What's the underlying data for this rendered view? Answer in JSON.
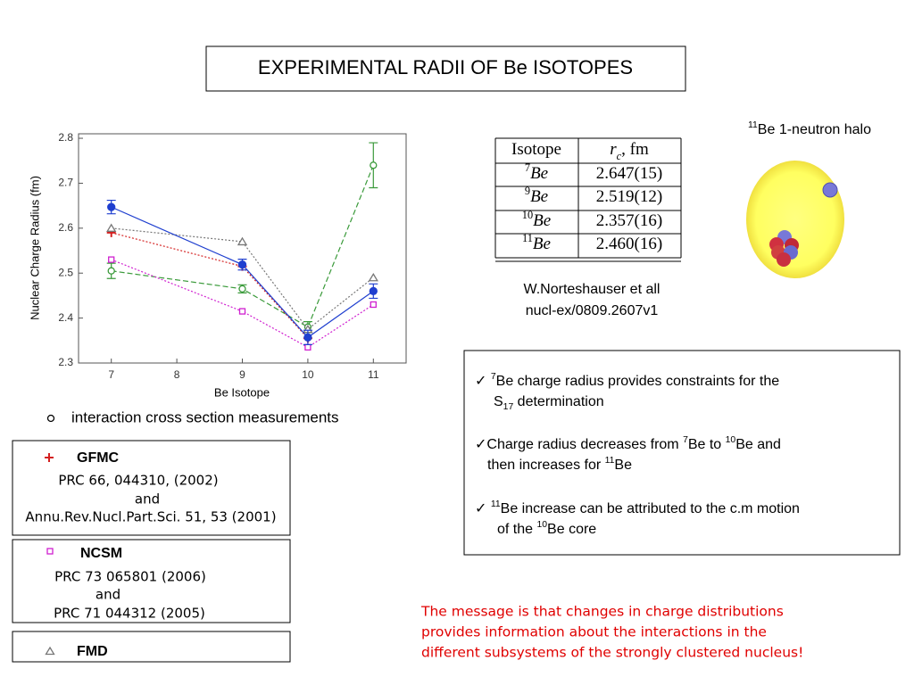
{
  "title": "EXPERIMENTAL RADII OF Be ISOTOPES",
  "chart_data": {
    "type": "line",
    "x_label": "Be Isotope",
    "y_label": "Nuclear Charge Radius (fm)",
    "x": [
      7,
      9,
      10,
      11
    ],
    "xlim": [
      6.5,
      11.5
    ],
    "xticks": [
      7,
      8,
      9,
      10,
      11
    ],
    "ylim": [
      2.3,
      2.81
    ],
    "yticks": [
      2.3,
      2.4,
      2.5,
      2.6,
      2.7,
      2.8
    ],
    "series": [
      {
        "name": "interaction cross section measurements",
        "color": "#3a9a3a",
        "marker": "circle-open",
        "dash": "dashed",
        "values": [
          2.505,
          2.465,
          2.38,
          2.74
        ],
        "errors": [
          0.017,
          0.009,
          0.012,
          0.05
        ]
      },
      {
        "name": "GFMC",
        "color": "#d42020",
        "marker": "plus",
        "dash": "dotted",
        "values": [
          2.59,
          2.515,
          2.355,
          null
        ]
      },
      {
        "name": "NCSM",
        "color": "#d020d0",
        "marker": "square-open",
        "dash": "dotted",
        "values": [
          2.53,
          2.415,
          2.335,
          2.43
        ]
      },
      {
        "name": "FMD",
        "color": "#777777",
        "marker": "triangle-open",
        "dash": "dotted",
        "values": [
          2.6,
          2.57,
          2.375,
          2.49
        ]
      },
      {
        "color": "#1f3fcf",
        "marker": "circle-filled",
        "dash": "solid",
        "values": [
          2.647,
          2.519,
          2.357,
          2.46
        ],
        "errors": [
          0.015,
          0.012,
          0.016,
          0.016
        ]
      }
    ]
  },
  "halo": {
    "label": [
      {
        "text": "11",
        "sup": true
      },
      {
        "text": "Be 1-neutron halo"
      }
    ]
  },
  "table": {
    "header": [
      [
        {
          "text": "Isotope"
        }
      ],
      [
        {
          "text": "r",
          "italic": true
        },
        {
          "text": "c",
          "sub": true,
          "italic": true
        },
        {
          "text": ", fm"
        }
      ]
    ],
    "rows": [
      [
        [
          {
            "text": "7",
            "sup": true
          },
          {
            "text": "Be",
            "italic": true
          }
        ],
        [
          {
            "text": "2.647(15)"
          }
        ]
      ],
      [
        [
          {
            "text": "9",
            "sup": true
          },
          {
            "text": "Be",
            "italic": true
          }
        ],
        [
          {
            "text": "2.519(12)"
          }
        ]
      ],
      [
        [
          {
            "text": "10",
            "sup": true
          },
          {
            "text": "Be",
            "italic": true
          }
        ],
        [
          {
            "text": "2.357(16)"
          }
        ]
      ],
      [
        [
          {
            "text": "11",
            "sup": true
          },
          {
            "text": "Be",
            "italic": true
          }
        ],
        [
          {
            "text": "2.460(16)"
          }
        ]
      ]
    ]
  },
  "citation": [
    "W.Norteshauser et all",
    "nucl-ex/0809.2607v1"
  ],
  "gfmc_refs": [
    "PRC 66, 044310, (2002)",
    "and",
    "Annu.Rev.Nucl.Part.Sci. 51, 53 (2001)"
  ],
  "ncsm_refs": [
    "PRC 73 065801 (2006)",
    "and",
    "PRC 71 044312 (2005)"
  ],
  "notes": [
    [
      [
        {
          "text": "✓ "
        },
        {
          "text": "7",
          "sup": true
        },
        {
          "text": "Be charge radius provides constraints for the"
        }
      ],
      [
        {
          "text": "S"
        },
        {
          "text": "17",
          "sub": true
        },
        {
          "text": " determination"
        }
      ]
    ],
    [
      [
        {
          "text": "✓Charge radius decreases from "
        },
        {
          "text": "7",
          "sup": true
        },
        {
          "text": "Be to "
        },
        {
          "text": "10",
          "sup": true
        },
        {
          "text": "Be and"
        }
      ],
      [
        {
          "text": "then increases for "
        },
        {
          "text": "11",
          "sup": true
        },
        {
          "text": "Be"
        }
      ]
    ],
    [
      [
        {
          "text": "✓ "
        },
        {
          "text": "11",
          "sup": true
        },
        {
          "text": "Be increase can be attributed to the c.m motion"
        }
      ],
      [
        {
          "text": "of the "
        },
        {
          "text": "10",
          "sup": true
        },
        {
          "text": "Be core"
        }
      ]
    ]
  ],
  "message": [
    "The message is that changes in charge distributions",
    "provides information about the interactions in the",
    "different subsystems of the strongly clustered nucleus!"
  ]
}
